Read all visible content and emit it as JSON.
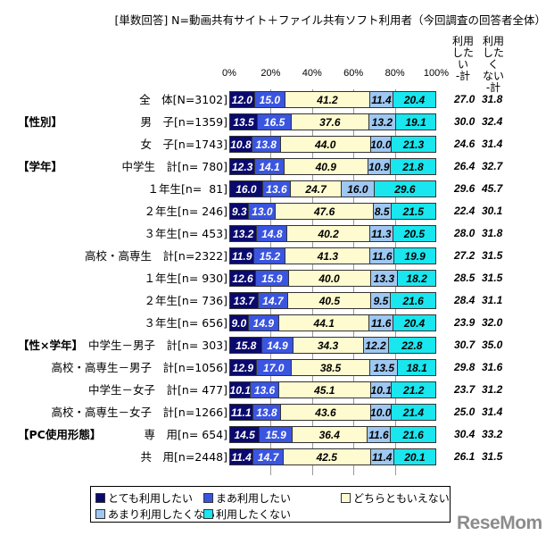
{
  "header": {
    "title": "[単数回答] N=動画共有サイト＋ファイル共有ソフト利用者（今回調査の回答者全体）",
    "sum_col1": "利用\nしたい\n-計",
    "sum_col2": "利用\nしたく\nない\n-計"
  },
  "axis": {
    "ticks": [
      "0%",
      "20%",
      "40%",
      "60%",
      "80%",
      "100%"
    ]
  },
  "legend": {
    "items": [
      {
        "label": "とても利用したい",
        "color": "#0a0a6e"
      },
      {
        "label": "まあ利用したい",
        "color": "#3a55e0"
      },
      {
        "label": "どちらともいえない",
        "color": "#fffbd0"
      },
      {
        "label": "あまり利用したくない",
        "color": "#9ec8f2"
      },
      {
        "label": "利用したくない",
        "color": "#19e6ee"
      }
    ]
  },
  "watermark": "ReseMom",
  "chart_data": {
    "type": "bar",
    "orientation": "horizontal",
    "stacked": true,
    "percent_stacked": true,
    "title": "[単数回答] N=動画共有サイト＋ファイル共有ソフト利用者（今回調査の回答者全体）",
    "xlabel": "",
    "ylabel": "",
    "xlim": [
      0,
      100
    ],
    "x_ticks": [
      "0%",
      "20%",
      "40%",
      "60%",
      "80%",
      "100%"
    ],
    "grid": true,
    "legend_position": "bottom",
    "groups": [
      {
        "name": "",
        "rows": [
          0
        ]
      },
      {
        "name": "【性別】",
        "rows": [
          1,
          2
        ]
      },
      {
        "name": "【学年】",
        "rows": [
          3,
          4,
          5,
          6,
          7,
          8,
          9,
          10
        ]
      },
      {
        "name": "【性×学年】",
        "rows": [
          11,
          12,
          13,
          14
        ]
      },
      {
        "name": "【PC使用形態】",
        "rows": [
          15,
          16
        ]
      }
    ],
    "categories": [
      "全　体[N=3102]",
      "男　子[n=1359]",
      "女　子[n=1743]",
      "中学生　計[n= 780]",
      "１年生[n=  81]",
      "２年生[n= 246]",
      "３年生[n= 453]",
      "高校・高専生　計[n=2322]",
      "１年生[n= 930]",
      "２年生[n= 736]",
      "３年生[n= 656]",
      "中学生－男子　計[n= 303]",
      "高校・高専生－男子　計[n=1056]",
      "中学生－女子　計[n= 477]",
      "高校・高専生－女子　計[n=1266]",
      "専　用[n= 654]",
      "共　用[n=2448]"
    ],
    "series": [
      {
        "name": "とても利用したい",
        "color": "#0a0a6e",
        "values": [
          12.0,
          13.5,
          10.8,
          12.3,
          16.0,
          9.3,
          13.2,
          11.9,
          12.6,
          13.7,
          9.0,
          15.8,
          12.9,
          10.1,
          11.1,
          14.5,
          11.4
        ]
      },
      {
        "name": "まあ利用したい",
        "color": "#3a55e0",
        "values": [
          15.0,
          16.5,
          13.8,
          14.1,
          13.6,
          13.0,
          14.8,
          15.2,
          15.9,
          14.7,
          14.9,
          14.9,
          17.0,
          13.6,
          13.8,
          15.9,
          14.7
        ]
      },
      {
        "name": "どちらともいえない",
        "color": "#fffbd0",
        "values": [
          41.2,
          37.6,
          44.0,
          40.9,
          24.7,
          47.6,
          40.2,
          41.3,
          40.0,
          40.5,
          44.1,
          34.3,
          38.5,
          45.1,
          43.6,
          36.4,
          42.5
        ]
      },
      {
        "name": "あまり利用したくない",
        "color": "#9ec8f2",
        "values": [
          11.4,
          13.2,
          10.0,
          10.9,
          16.0,
          8.5,
          11.3,
          11.6,
          13.3,
          9.5,
          11.6,
          12.2,
          13.5,
          10.1,
          10.0,
          11.6,
          11.4
        ]
      },
      {
        "name": "利用したくない",
        "color": "#19e6ee",
        "values": [
          20.4,
          19.1,
          21.3,
          21.8,
          29.6,
          21.5,
          20.5,
          19.9,
          18.2,
          21.6,
          20.4,
          22.8,
          18.1,
          21.2,
          21.4,
          21.6,
          20.1
        ]
      }
    ],
    "summary_columns": [
      {
        "name": "利用したい-計",
        "values": [
          27.0,
          30.0,
          24.6,
          26.4,
          29.6,
          22.4,
          28.0,
          27.2,
          28.5,
          28.4,
          23.9,
          30.7,
          29.8,
          23.7,
          25.0,
          30.4,
          26.1
        ]
      },
      {
        "name": "利用したくない-計",
        "values": [
          31.8,
          32.4,
          31.4,
          32.7,
          45.7,
          30.1,
          31.8,
          31.5,
          31.5,
          31.1,
          32.0,
          35.0,
          31.6,
          31.2,
          31.4,
          33.2,
          31.5
        ]
      }
    ]
  },
  "rows": [
    {
      "group": "",
      "label": "全　体[N=3102]"
    },
    {
      "group": "【性別】",
      "label": "男　子[n=1359]"
    },
    {
      "group": "",
      "label": "女　子[n=1743]"
    },
    {
      "group": "【学年】",
      "label": "中学生　計[n= 780]"
    },
    {
      "group": "",
      "label": "１年生[n=  81]"
    },
    {
      "group": "",
      "label": "２年生[n= 246]"
    },
    {
      "group": "",
      "label": "３年生[n= 453]"
    },
    {
      "group": "",
      "label": "高校・高専生　計[n=2322]"
    },
    {
      "group": "",
      "label": "１年生[n= 930]"
    },
    {
      "group": "",
      "label": "２年生[n= 736]"
    },
    {
      "group": "",
      "label": "３年生[n= 656]"
    },
    {
      "group": "【性×学年】",
      "label": "中学生－男子　計[n= 303]"
    },
    {
      "group": "",
      "label": "高校・高専生－男子　計[n=1056]"
    },
    {
      "group": "",
      "label": "中学生－女子　計[n= 477]"
    },
    {
      "group": "",
      "label": "高校・高専生－女子　計[n=1266]"
    },
    {
      "group": "【PC使用形態】",
      "label": "専　用[n= 654]"
    },
    {
      "group": "",
      "label": "共　用[n=2448]"
    }
  ]
}
